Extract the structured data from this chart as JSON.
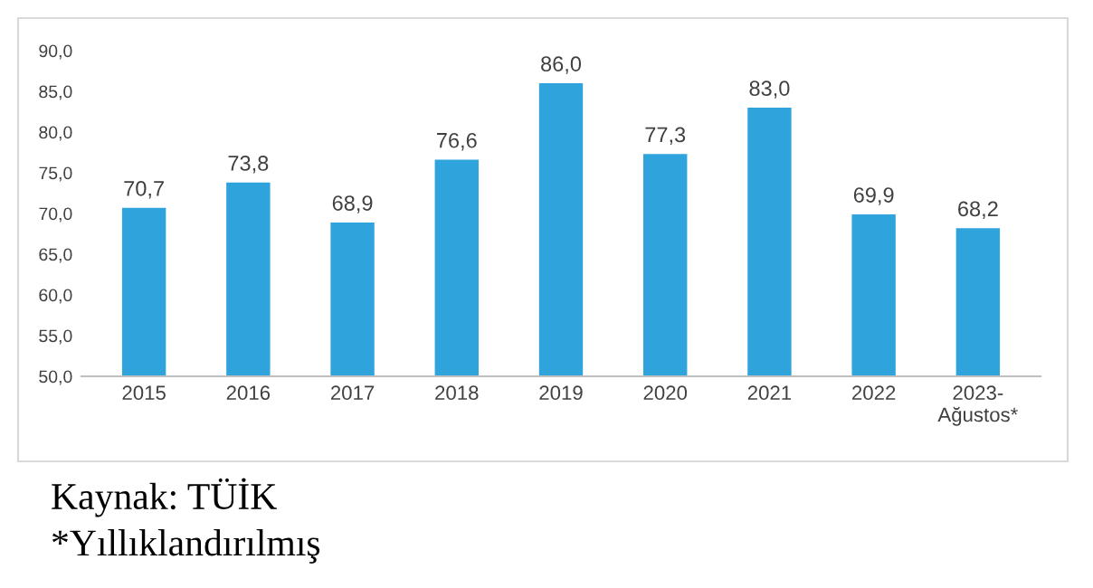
{
  "chart_data": {
    "type": "bar",
    "categories": [
      "2015",
      "2016",
      "2017",
      "2018",
      "2019",
      "2020",
      "2021",
      "2022",
      "2023-\nAğustos*"
    ],
    "values": [
      70.7,
      73.8,
      68.9,
      76.6,
      86.0,
      77.3,
      83.0,
      69.9,
      68.2
    ],
    "value_labels": [
      "70,7",
      "73,8",
      "68,9",
      "76,6",
      "86,0",
      "77,3",
      "83,0",
      "69,9",
      "68,2"
    ],
    "color": "#2ea3dc",
    "ylim": [
      50,
      90
    ],
    "yticks": [
      {
        "value": 50,
        "label": "50,0"
      },
      {
        "value": 55,
        "label": "55,0"
      },
      {
        "value": 60,
        "label": "60,0"
      },
      {
        "value": 65,
        "label": "65,0"
      },
      {
        "value": 70,
        "label": "70,0"
      },
      {
        "value": 75,
        "label": "75,0"
      },
      {
        "value": 80,
        "label": "80,0"
      },
      {
        "value": 85,
        "label": "85,0"
      },
      {
        "value": 90,
        "label": "90,0"
      }
    ],
    "grid": false,
    "annotations": [
      "Kaynak: TÜİK",
      "*Yıllıklandırılmış"
    ]
  }
}
